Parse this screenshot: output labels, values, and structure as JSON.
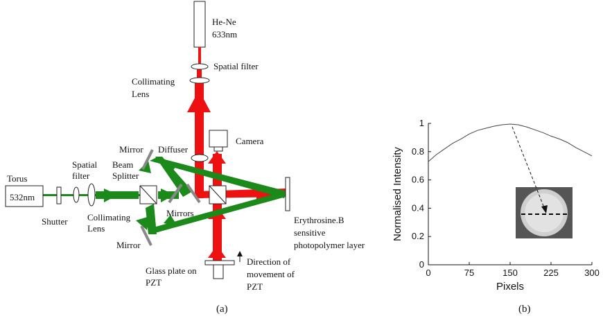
{
  "setup": {
    "labels": {
      "laser_red_name": "He-Ne",
      "laser_red_wavelength": "633nm",
      "spatial_filter_top": "Spatial filter",
      "collimating_lens_top_1": "Collimating",
      "collimating_lens_top_2": "Lens",
      "camera": "Camera",
      "mirror_top": "Mirror",
      "diffuser": "Diffuser",
      "beam_splitter_1": "Beam",
      "beam_splitter_2": "Splitter",
      "spatial_filter_left_1": "Spatial",
      "spatial_filter_left_2": "filter",
      "torus": "Torus",
      "laser_green_wavelength": "532nm",
      "shutter": "Shutter",
      "collimating_lens_left_1": "Collimating",
      "collimating_lens_left_2": "Lens",
      "mirrors": "Mirrors",
      "mirror_bottom": "Mirror",
      "sample_1": "Erythrosine.B",
      "sample_2": "sensitive",
      "sample_3": "photopolymer layer",
      "glass_plate_1": "Glass plate on",
      "glass_plate_2": "PZT",
      "direction_1": "Direction of",
      "direction_2": "movement of",
      "direction_3": "PZT"
    },
    "caption": "(a)",
    "colors": {
      "red_beam": "#ee1111",
      "green_beam": "#1b8a1b"
    }
  },
  "chart_data": {
    "type": "line",
    "xlabel": "Pixels",
    "ylabel": "Normalised Intensity",
    "xlim": [
      0,
      300
    ],
    "ylim": [
      0,
      1
    ],
    "x_ticks": [
      "0",
      "75",
      "150",
      "225",
      "300"
    ],
    "y_ticks": [
      "0",
      "0.2",
      "0.4",
      "0.6",
      "0.8",
      "1"
    ],
    "grid": false,
    "series": [
      {
        "x": [
          0,
          15,
          30,
          45,
          60,
          75,
          90,
          105,
          120,
          135,
          150,
          165,
          180,
          195,
          210,
          225,
          240,
          255,
          270,
          285,
          300
        ],
        "values": [
          0.73,
          0.78,
          0.82,
          0.86,
          0.89,
          0.925,
          0.95,
          0.965,
          0.98,
          0.99,
          0.995,
          0.99,
          0.975,
          0.955,
          0.935,
          0.91,
          0.89,
          0.865,
          0.83,
          0.8,
          0.77
        ]
      }
    ],
    "caption": "(b)",
    "inset": {
      "description_icon": "beam-spot-image-icon"
    }
  }
}
